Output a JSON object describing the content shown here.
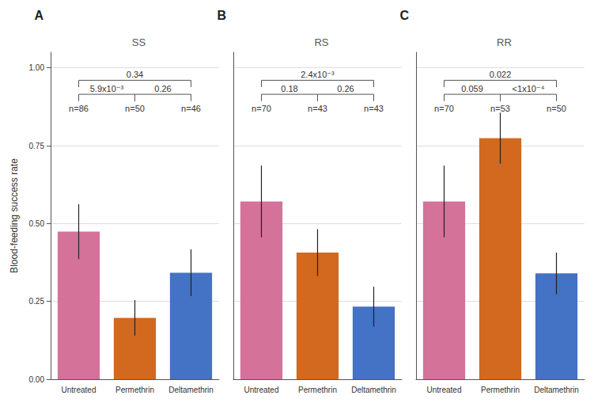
{
  "chart_data": [
    {
      "type": "bar",
      "title": "SS",
      "categories": [
        "Untreated",
        "Permethrin",
        "Deltamethrin"
      ],
      "values": [
        0.474,
        0.197,
        0.342
      ],
      "errors": [
        0.088,
        0.057,
        0.075
      ],
      "colors": [
        "#d4729a",
        "#d2691e",
        "#4472c4"
      ],
      "ylabel": "Blood-feeding success rate",
      "ylim": [
        0.0,
        1.05
      ],
      "yticks": [
        {
          "value": 0.0,
          "label": "0.00"
        },
        0.25,
        {
          "value": 0.5,
          "label": "0.50"
        },
        0.75,
        {
          "value": 1.0,
          "label": "1.00"
        }
      ],
      "grid": true,
      "annotations": [
        {
          "text": "A"
        },
        {
          "text": "n=86",
          "x": "Untreated",
          "y": 0.855
        },
        {
          "text": "n=50",
          "x": "Permethrin",
          "y": 0.855
        },
        {
          "text": "n=46",
          "x": "Deltamethrin",
          "y": 0.855
        },
        {
          "text": "5.9x10⁻³",
          "x1": "Untreated",
          "x2": "Permethrin",
          "y": 0.915
        },
        {
          "text": "0.26",
          "x1": "Permethrin",
          "x2": "Deltamethrin",
          "y": 0.915
        },
        {
          "text": "0.34",
          "x1": "Untreated",
          "x2": "Deltamethrin",
          "y": 0.96
        }
      ]
    },
    {
      "type": "bar",
      "title": "RS",
      "categories": [
        "Untreated",
        "Permethrin",
        "Deltamethrin"
      ],
      "values": [
        0.571,
        0.407,
        0.233
      ],
      "errors": [
        0.115,
        0.075,
        0.064
      ],
      "colors": [
        "#d4729a",
        "#d2691e",
        "#4472c4"
      ],
      "ylim": [
        0.0,
        1.05
      ],
      "yticks": [
        {
          "value": 0.0,
          "label": "0.00"
        },
        0.25,
        {
          "value": 0.5,
          "label": "0.50"
        },
        0.75,
        {
          "value": 1.0,
          "label": "1.00"
        }
      ],
      "grid": true,
      "tick_labels": "x",
      "annotations": [
        {
          "text": "B"
        },
        {
          "text": "n=70",
          "x": "Untreated",
          "y": 0.855
        },
        {
          "text": "n=43",
          "x": "Permethrin",
          "y": 0.855
        },
        {
          "text": "n=43",
          "x": "Deltamethrin",
          "y": 0.855
        },
        {
          "text": "0.18",
          "x1": "Untreated",
          "x2": "Permethrin",
          "y": 0.915
        },
        {
          "text": "0.26",
          "x1": "Permethrin",
          "x2": "Deltamethrin",
          "y": 0.915
        },
        {
          "text": "2.4x10⁻³",
          "x1": "Untreated",
          "x2": "Deltamethrin",
          "y": 0.96
        }
      ]
    },
    {
      "type": "bar",
      "title": "RR",
      "categories": [
        "Untreated",
        "Permethrin",
        "Deltamethrin"
      ],
      "values": [
        0.571,
        0.774,
        0.34
      ],
      "errors": [
        0.115,
        0.082,
        0.067
      ],
      "colors": [
        "#d4729a",
        "#d2691e",
        "#4472c4"
      ],
      "ylim": [
        0.0,
        1.05
      ],
      "yticks": [
        {
          "value": 0.0,
          "label": "0.00"
        },
        0.25,
        {
          "value": 0.5,
          "label": "0.50"
        },
        0.75,
        {
          "value": 1.0,
          "label": "1.00"
        }
      ],
      "grid": true,
      "tick_labels": "x",
      "annotations": [
        {
          "text": "C"
        },
        {
          "text": "n=70",
          "x": "Untreated",
          "y": 0.855
        },
        {
          "text": "n=53",
          "x": "Permethrin",
          "y": 0.855
        },
        {
          "text": "n=50",
          "x": "Deltamethrin",
          "y": 0.855
        },
        {
          "text": "0.059",
          "x1": "Untreated",
          "x2": "Permethrin",
          "y": 0.915
        },
        {
          "text": "<1x10⁻⁴",
          "x1": "Permethrin",
          "x2": "Deltamethrin",
          "y": 0.915
        },
        {
          "text": "0.022",
          "x1": "Untreated",
          "x2": "Deltamethrin",
          "y": 0.96
        }
      ]
    }
  ]
}
